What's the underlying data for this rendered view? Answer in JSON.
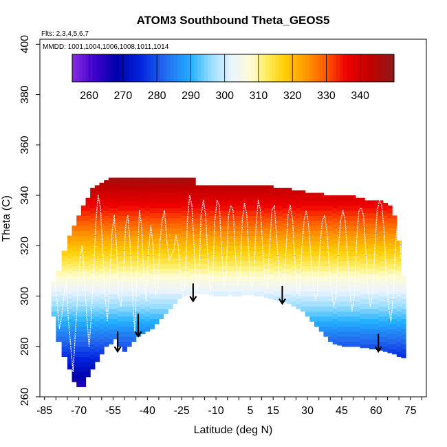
{
  "chart_data": {
    "type": "heatmap",
    "title": "ATOM3 Southbound Theta_GEOS5",
    "annotations": [
      "Flts: 2,3,4,5,6,7",
      "MMDD: 1001,1004,1006,1008,1011,1014"
    ],
    "xlabel": "Latitude (deg N)",
    "ylabel": "Theta (C)",
    "xlim": [
      -87,
      82
    ],
    "ylim": [
      260,
      402
    ],
    "x_tick_labels": [
      "-85",
      "-70",
      "-55",
      "-40",
      "-25",
      "-10",
      "5",
      "15",
      "30",
      "45",
      "60",
      "75"
    ],
    "x_tick_values": [
      -85,
      -70,
      -55,
      -40,
      -25,
      -10,
      5,
      15,
      30,
      45,
      60,
      75
    ],
    "x_minor_ticks": [
      -85,
      -80,
      -75,
      -70,
      -65,
      -60,
      -55,
      -50,
      -45,
      -40,
      -35,
      -30,
      -25,
      -20,
      -15,
      -10,
      -5,
      0,
      5,
      10,
      15,
      20,
      25,
      30,
      35,
      40,
      45,
      50,
      55,
      60,
      65,
      70,
      75,
      80
    ],
    "y_tick_labels": [
      "260",
      "280",
      "300",
      "320",
      "340",
      "360",
      "380",
      "400"
    ],
    "y_tick_values": [
      260,
      280,
      300,
      320,
      340,
      360,
      380,
      400
    ],
    "colorbar": {
      "min": 255,
      "max": 350,
      "tick_labels": [
        "260",
        "270",
        "280",
        "290",
        "300",
        "310",
        "320",
        "330",
        "340"
      ],
      "tick_values": [
        260,
        270,
        280,
        290,
        300,
        310,
        320,
        330,
        340
      ],
      "stops": [
        {
          "v": 255,
          "c": "#8a2be2"
        },
        {
          "v": 262,
          "c": "#3a00cc"
        },
        {
          "v": 268,
          "c": "#0000aa"
        },
        {
          "v": 275,
          "c": "#0022dd"
        },
        {
          "v": 282,
          "c": "#2266ee"
        },
        {
          "v": 290,
          "c": "#22b0ff"
        },
        {
          "v": 296,
          "c": "#99ddff"
        },
        {
          "v": 302,
          "c": "#eaf4ff"
        },
        {
          "v": 308,
          "c": "#fffcd0"
        },
        {
          "v": 312,
          "c": "#ffee66"
        },
        {
          "v": 318,
          "c": "#ffcc00"
        },
        {
          "v": 324,
          "c": "#ff9900"
        },
        {
          "v": 330,
          "c": "#ff5500"
        },
        {
          "v": 336,
          "c": "#ee0000"
        },
        {
          "v": 343,
          "c": "#c20000"
        },
        {
          "v": 350,
          "c": "#8b1a1a"
        }
      ]
    },
    "curtain": {
      "lat": [
        -81,
        -79,
        -76,
        -74,
        -72,
        -70,
        -68,
        -66,
        -64,
        -62,
        -60,
        -58,
        -56,
        -54,
        -52,
        -50,
        -48,
        -46,
        -44,
        -42,
        -40,
        -38,
        -36,
        -34,
        -32,
        -30,
        -28,
        -26,
        -24,
        -22,
        -20,
        -18,
        -16,
        -14,
        -12,
        -10,
        -8,
        -6,
        -4,
        -2,
        0,
        2,
        4,
        6,
        8,
        10,
        12,
        14,
        16,
        18,
        20,
        22,
        24,
        26,
        28,
        30,
        32,
        34,
        36,
        38,
        40,
        42,
        44,
        46,
        48,
        50,
        52,
        54,
        56,
        58,
        60,
        62,
        64,
        66,
        68,
        70,
        72
      ],
      "theta_bottom": [
        292,
        282,
        276,
        271,
        266,
        264,
        264,
        268,
        271,
        274,
        277,
        280,
        281,
        283,
        280,
        278,
        280,
        282,
        284,
        285,
        286,
        287,
        289,
        291,
        293,
        295,
        297,
        299,
        300,
        300.5,
        301,
        301,
        301,
        301,
        300.5,
        300,
        300,
        300,
        300.5,
        300,
        300,
        300.5,
        300.5,
        300.5,
        300,
        300,
        299.5,
        299,
        298.5,
        298,
        297.5,
        297,
        296,
        295,
        294,
        292,
        290,
        288,
        286,
        284,
        282,
        281,
        280.5,
        280,
        280,
        280,
        280,
        279.5,
        279.5,
        279,
        279,
        278.5,
        278,
        277.5,
        277,
        276,
        275.5
      ],
      "theta_top": [
        306,
        310,
        318,
        324,
        328,
        332,
        336,
        339,
        343,
        344,
        345,
        346,
        347,
        347,
        347,
        347,
        347,
        347,
        347,
        347,
        347,
        347,
        347,
        347,
        347,
        347,
        347,
        347,
        347,
        347,
        347,
        344,
        344,
        344,
        344,
        344,
        344,
        344,
        344,
        344,
        344,
        344,
        344,
        344,
        344,
        344,
        344,
        344,
        343,
        343,
        343,
        343,
        342,
        342,
        342,
        341,
        341,
        341,
        341,
        340,
        340,
        340,
        340,
        340,
        340,
        340,
        339,
        339,
        338,
        338,
        338,
        338,
        337,
        336,
        332,
        322,
        308
      ]
    },
    "flight_track": {
      "lat": [
        -80.5,
        -79.5,
        -78.5,
        -77.5,
        -76.5,
        -75.5,
        -74.5,
        -73.5,
        -72.5,
        -71.5,
        -70.5,
        -69.5,
        -68.5,
        -67.5,
        -66.5,
        -65.5,
        -64.5,
        -63.5,
        -62.5,
        -61.5,
        -60.5,
        -59.5,
        -58.5,
        -57.5,
        -56.5,
        -55.5,
        -54.5,
        -53.5,
        -52.5,
        -51.5,
        -50.5,
        -49.5,
        -48.5,
        -47.5,
        -46.5,
        -45.5,
        -44.5,
        -43.5,
        -42.5,
        -41.5,
        -40.5,
        -39.5,
        -38.5,
        -37.5,
        -36.5,
        -35.5,
        -34.5,
        -33.5,
        -32.5,
        -31.5,
        -30.5,
        -29.5,
        -28.5,
        -27.5,
        -26.5,
        -25.5,
        -24.5,
        -23.5,
        -22.5,
        -21.5,
        -20.5,
        -19.5,
        -18.5,
        -17.5,
        -16.5,
        -15.5,
        -14.5,
        -13.5,
        -12.5,
        -11.5,
        -10.5,
        -9.5,
        -8.5,
        -7.5,
        -6.5,
        -5.5,
        -4.5,
        -3.5,
        -2.5,
        -1.5,
        -0.5,
        0.5,
        1.5,
        2.5,
        3.5,
        4.5,
        5.5,
        6.5,
        7.5,
        8.5,
        9.5,
        10.5,
        11.5,
        12.5,
        13.5,
        14.5,
        15.5,
        16.5,
        17.5,
        18.5,
        19.5,
        20.5,
        21.5,
        22.5,
        23.5,
        24.5,
        25.5,
        26.5,
        27.5,
        28.5,
        29.5,
        30.5,
        31.5,
        32.5,
        33.5,
        34.5,
        35.5,
        36.5,
        37.5,
        38.5,
        39.5,
        40.5,
        41.5,
        42.5,
        43.5,
        44.5,
        45.5,
        46.5,
        47.5,
        48.5,
        49.5,
        50.5,
        51.5,
        52.5,
        53.5,
        54.5,
        55.5,
        56.5,
        57.5,
        58.5,
        59.5,
        60.5,
        61.5,
        62.5,
        63.5,
        64.5,
        65.5,
        66.5,
        67.5,
        68.5,
        69.5,
        70.5,
        71.5
      ],
      "theta": [
        306,
        298,
        287,
        292,
        300,
        306,
        290,
        280,
        270,
        285,
        300,
        315,
        320,
        308,
        292,
        280,
        292,
        310,
        330,
        340,
        335,
        318,
        300,
        290,
        305,
        325,
        332,
        320,
        300,
        296,
        308,
        328,
        332,
        320,
        300,
        286,
        310,
        334,
        328,
        306,
        298,
        318,
        328,
        320,
        300,
        304,
        322,
        330,
        334,
        322,
        314,
        316,
        318,
        324,
        320,
        308,
        300,
        305,
        330,
        340,
        336,
        318,
        302,
        306,
        332,
        338,
        332,
        314,
        302,
        305,
        330,
        338,
        336,
        318,
        304,
        310,
        332,
        336,
        334,
        316,
        304,
        308,
        330,
        337,
        332,
        314,
        303,
        306,
        328,
        338,
        334,
        318,
        306,
        303,
        320,
        334,
        336,
        324,
        310,
        304,
        300,
        316,
        332,
        336,
        330,
        314,
        302,
        300,
        318,
        330,
        334,
        328,
        316,
        304,
        298,
        302,
        320,
        330,
        332,
        326,
        312,
        302,
        296,
        300,
        318,
        330,
        334,
        330,
        316,
        302,
        294,
        300,
        322,
        334,
        335,
        332,
        318,
        302,
        296,
        300,
        320,
        334,
        338,
        336,
        326,
        306,
        296,
        290,
        300,
        320,
        330,
        322,
        308
      ]
    },
    "arrows": [
      {
        "lat": -53,
        "theta_top": 286,
        "theta_tip": 278
      },
      {
        "lat": -44,
        "theta_top": 293,
        "theta_tip": 284
      },
      {
        "lat": -20,
        "theta_top": 305,
        "theta_tip": 298
      },
      {
        "lat": 19,
        "theta_top": 304,
        "theta_tip": 297
      },
      {
        "lat": 61,
        "theta_top": 285,
        "theta_tip": 278
      }
    ]
  }
}
